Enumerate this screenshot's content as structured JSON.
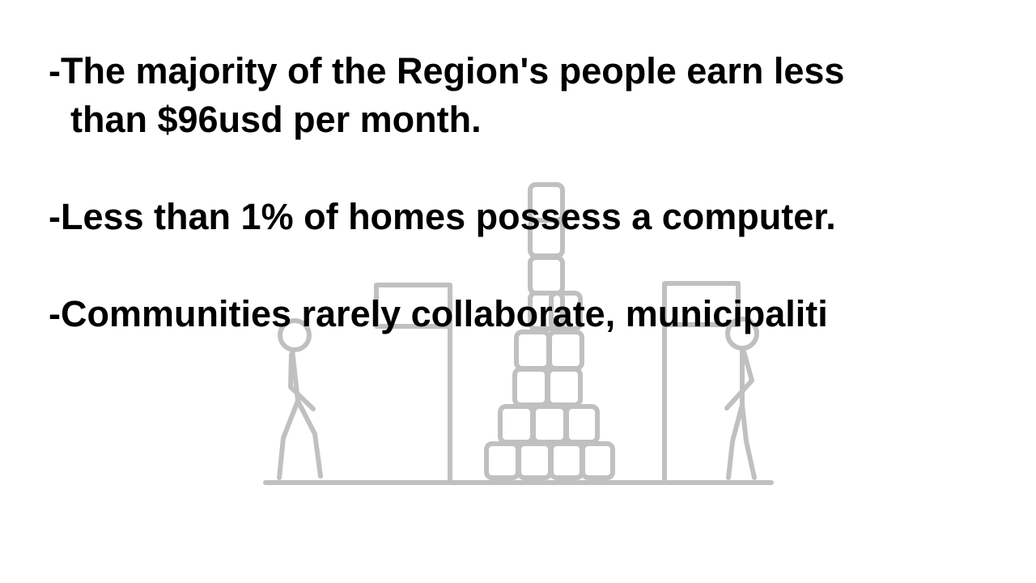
{
  "slide": {
    "bullets": [
      {
        "line1": "-The majority of the Region's people earn less",
        "line2": "than $96usd per month."
      },
      {
        "line1": "-Less than 1% of homes possess a computer."
      },
      {
        "line1": "-Communities rarely collaborate, municipaliti"
      }
    ]
  },
  "colors": {
    "text": "#000000",
    "drawing_stroke": "#c0c0c0",
    "background": "#ffffff"
  },
  "illustration": {
    "figures": [
      "stick-figure-left",
      "stick-figure-right"
    ],
    "objects": [
      "door-left",
      "door-right",
      "stacked-blocks",
      "ground-line"
    ]
  }
}
